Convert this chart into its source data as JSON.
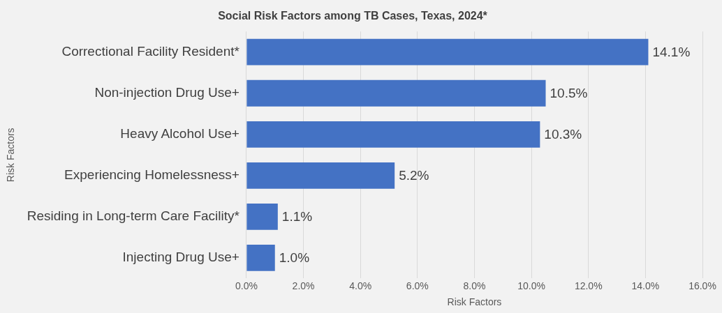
{
  "chart_data": {
    "type": "bar",
    "orientation": "horizontal",
    "title": "Social Risk Factors among TB Cases, Texas, 2024*",
    "xlabel": "Risk Factors",
    "ylabel": "Risk Factors",
    "categories": [
      "Correctional Facility Resident*",
      "Non-injection Drug Use+",
      "Heavy Alcohol Use+",
      "Experiencing Homelessness+",
      "Residing in Long-term Care Facility*",
      "Injecting Drug Use+"
    ],
    "values": [
      14.1,
      10.5,
      10.3,
      5.2,
      1.1,
      1.0
    ],
    "value_labels": [
      "14.1%",
      "10.5%",
      "10.3%",
      "5.2%",
      "1.1%",
      "1.0%"
    ],
    "color": "#4472c4",
    "xlim": [
      0,
      16
    ],
    "xticks": [
      {
        "value": 0,
        "label": "0.0%"
      },
      {
        "value": 2,
        "label": "2.0%"
      },
      {
        "value": 4,
        "label": "4.0%"
      },
      {
        "value": 6,
        "label": "6.0%"
      },
      {
        "value": 8,
        "label": "8.0%"
      },
      {
        "value": 10,
        "label": "10.0%"
      },
      {
        "value": 12,
        "label": "12.0%"
      },
      {
        "value": 14,
        "label": "14.0%"
      },
      {
        "value": 16,
        "label": "16.0%"
      }
    ],
    "grid": "x",
    "legend": false
  }
}
